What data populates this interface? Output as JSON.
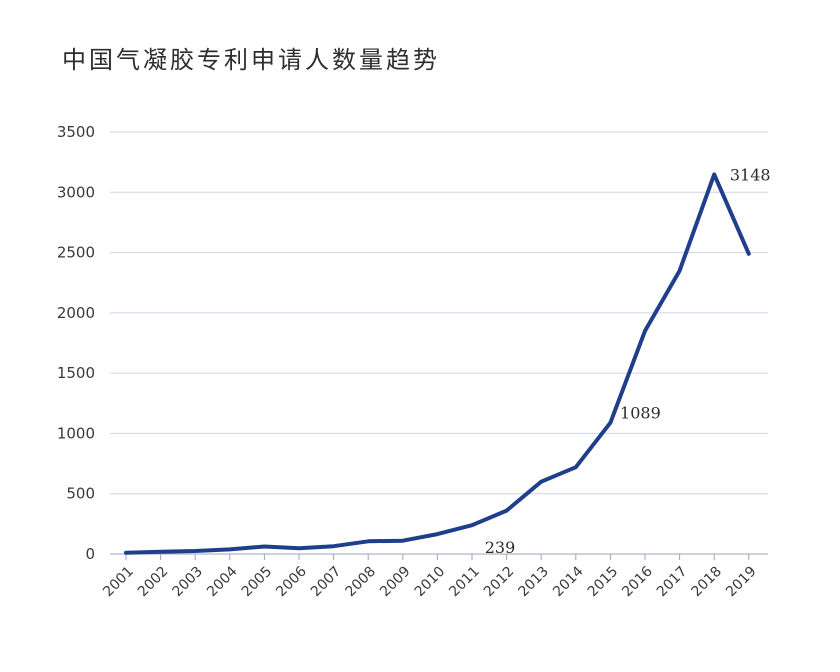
{
  "chart_data": {
    "type": "line",
    "title": "中国气凝胶专利申请人数量趋势",
    "xlabel": "",
    "ylabel": "",
    "x": [
      "2001",
      "2002",
      "2003",
      "2004",
      "2005",
      "2006",
      "2007",
      "2008",
      "2009",
      "2010",
      "2011",
      "2012",
      "2013",
      "2014",
      "2015",
      "2016",
      "2017",
      "2018",
      "2019"
    ],
    "series": [
      {
        "values": [
          10,
          18,
          25,
          38,
          62,
          48,
          65,
          105,
          110,
          165,
          239,
          360,
          600,
          720,
          1089,
          1850,
          2350,
          3148,
          2490
        ]
      }
    ],
    "ylim": [
      0,
      3500
    ],
    "yticks": [
      0,
      500,
      1000,
      1500,
      2000,
      2500,
      3000,
      3500
    ],
    "data_labels": [
      {
        "x": "2011",
        "text": "239"
      },
      {
        "x": "2015",
        "text": "1089"
      },
      {
        "x": "2018",
        "text": "3148"
      }
    ],
    "grid": true,
    "legend": "none",
    "line_color": "#1f3f8c",
    "grid_color": "#cfd3e6"
  }
}
